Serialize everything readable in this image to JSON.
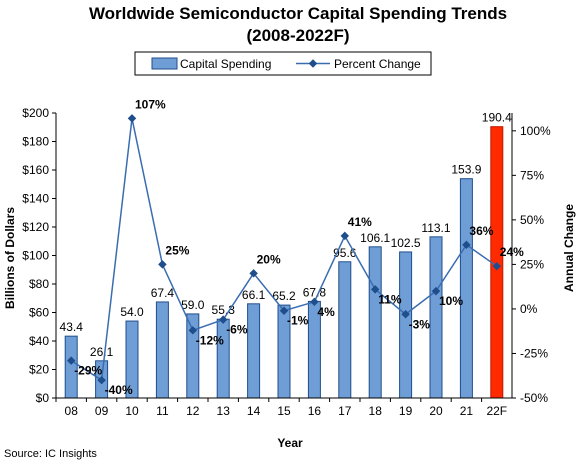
{
  "chart_data": {
    "type": "bar",
    "title_line1": "Worldwide Semiconductor Capital Spending Trends",
    "title_line2": "(2008-2022F)",
    "xlabel": "Year",
    "ylabel": "Billions of Dollars",
    "y2label": "Annual Change",
    "categories": [
      "08",
      "09",
      "10",
      "11",
      "12",
      "13",
      "14",
      "15",
      "16",
      "17",
      "18",
      "19",
      "20",
      "21",
      "22F"
    ],
    "ylim": [
      0,
      200
    ],
    "y_ticks": [
      "$0",
      "$20",
      "$40",
      "$60",
      "$80",
      "$100",
      "$120",
      "$140",
      "$160",
      "$180",
      "$200"
    ],
    "y2lim": [
      -50,
      110
    ],
    "y2_ticks": [
      "-50%",
      "-25%",
      "0%",
      "25%",
      "50%",
      "75%",
      "100%"
    ],
    "series": [
      {
        "name": "Capital Spending",
        "kind": "bar",
        "values": [
          43.4,
          26.1,
          54.0,
          67.4,
          59.0,
          55.3,
          66.1,
          65.2,
          67.8,
          95.6,
          106.1,
          102.5,
          113.1,
          153.9,
          190.4
        ],
        "labels": [
          "43.4",
          "26.1",
          "54.0",
          "67.4",
          "59.0",
          "55.3",
          "66.1",
          "65.2",
          "67.8",
          "95.6",
          "106.1",
          "102.5",
          "113.1",
          "153.9",
          "190.4"
        ],
        "color": "#6f9ed6",
        "highlight_color": "#ff2a00",
        "highlight_index": 14
      },
      {
        "name": "Percent Change",
        "kind": "line",
        "axis": "right",
        "values": [
          -29,
          -40,
          107,
          25,
          -12,
          -6,
          20,
          -1,
          4,
          41,
          11,
          -3,
          10,
          36,
          24
        ],
        "labels": [
          "-29%",
          "-40%",
          "107%",
          "25%",
          "-12%",
          "-6%",
          "20%",
          "-1%",
          "4%",
          "41%",
          "11%",
          "-3%",
          "10%",
          "36%",
          "24%"
        ],
        "color": "#3a6db0"
      }
    ],
    "legend_position": "top"
  },
  "source": "Source: IC Insights"
}
